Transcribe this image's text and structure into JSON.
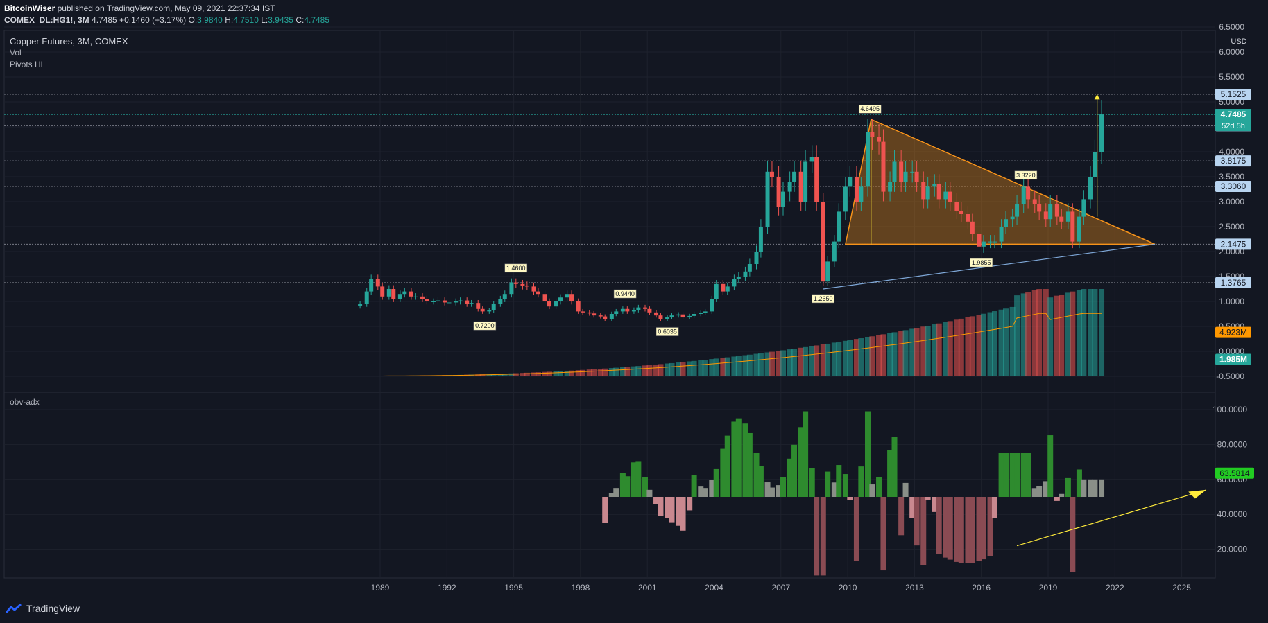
{
  "header": {
    "publisher": "BitcoinWiser",
    "published_text": "published on TradingView.com, May 09, 2021 22:37:34 IST",
    "symbol": "COMEX_DL:HG1!, 3M",
    "change": "4.7485 +0.1460 (+3.17%)",
    "o_label": "O:",
    "o": "3.9840",
    "h_label": "H:",
    "h": "4.7510",
    "l_label": "L:",
    "l": "3.9435",
    "c_label": "C:",
    "c": "4.7485"
  },
  "legend": {
    "title": "Copper Futures, 3M, COMEX",
    "vol": "Vol",
    "pivots": "Pivots HL",
    "osc": "obv-adx"
  },
  "price_axis": {
    "unit": "USD",
    "ticks": [
      "6.5000",
      "6.0000",
      "5.5000",
      "5.0000",
      "4.5000",
      "4.0000",
      "3.5000",
      "3.0000",
      "2.5000",
      "2.0000",
      "1.5000",
      "1.0000",
      "0.5000",
      "0.0000",
      "-0.5000"
    ],
    "levels": [
      "5.1525",
      "4.5225",
      "3.8175",
      "3.3060",
      "2.1475",
      "1.3765"
    ],
    "last_price": "4.7485",
    "countdown": "52d 5h",
    "vol_ma_label": "4.923M",
    "vol_label": "1.985M"
  },
  "osc_axis": {
    "ticks": [
      "100.0000",
      "80.0000",
      "60.0000",
      "40.0000",
      "20.0000"
    ],
    "last": "63.5814"
  },
  "time_axis": [
    "1989",
    "1992",
    "1995",
    "1998",
    "2001",
    "2004",
    "2007",
    "2010",
    "2013",
    "2016",
    "2019",
    "2022",
    "2025"
  ],
  "pivot_labels": [
    "1.4600",
    "0.7200",
    "0.9440",
    "0.6035",
    "1.2650",
    "4.6495",
    "1.9855",
    "3.3220"
  ],
  "colors": {
    "bg": "#131722",
    "up": "#26a69a",
    "down": "#ef5350",
    "triangle": "#f7931a",
    "osc_green": "#2e8b2e",
    "osc_gray": "#8a8f88",
    "osc_red": "#8a4b53",
    "pink": "#c9888f",
    "yellow": "#ffeb3b",
    "level": "#9598a1"
  },
  "chart_data": {
    "type": "candlestick",
    "title": "Copper Futures, 3M, COMEX",
    "x_axis_years": [
      1989,
      2025
    ],
    "ylim": [
      -0.6,
      6.6
    ],
    "horizontal_levels": [
      5.1525,
      4.5225,
      3.8175,
      3.306,
      2.1475,
      1.3765
    ],
    "pivots": [
      {
        "year": 1995.1,
        "value": 1.46,
        "type": "high"
      },
      {
        "year": 1993.7,
        "value": 0.72,
        "type": "low"
      },
      {
        "year": 2000.0,
        "value": 0.944,
        "type": "high"
      },
      {
        "year": 2001.9,
        "value": 0.6035,
        "type": "low"
      },
      {
        "year": 2008.9,
        "value": 1.265,
        "type": "low"
      },
      {
        "year": 2011.0,
        "value": 4.6495,
        "type": "high"
      },
      {
        "year": 2016.0,
        "value": 1.9855,
        "type": "low"
      },
      {
        "year": 2018.0,
        "value": 3.322,
        "type": "high"
      }
    ],
    "closes": [
      [
        1988.1,
        0.95
      ],
      [
        1988.4,
        1.2
      ],
      [
        1988.6,
        1.45
      ],
      [
        1988.9,
        1.3
      ],
      [
        1989.1,
        1.1
      ],
      [
        1989.4,
        1.25
      ],
      [
        1989.6,
        1.05
      ],
      [
        1989.9,
        1.15
      ],
      [
        1990.1,
        1.2
      ],
      [
        1990.4,
        1.1
      ],
      [
        1990.6,
        1.1
      ],
      [
        1990.9,
        1.05
      ],
      [
        1991.1,
        1.0
      ],
      [
        1991.4,
        1.0
      ],
      [
        1991.6,
        1.02
      ],
      [
        1991.9,
        0.98
      ],
      [
        1992.1,
        0.98
      ],
      [
        1992.4,
        1.0
      ],
      [
        1992.6,
        1.02
      ],
      [
        1992.9,
        0.95
      ],
      [
        1993.1,
        0.97
      ],
      [
        1993.4,
        0.85
      ],
      [
        1993.6,
        0.8
      ],
      [
        1993.9,
        0.82
      ],
      [
        1994.1,
        0.95
      ],
      [
        1994.4,
        1.05
      ],
      [
        1994.6,
        1.15
      ],
      [
        1994.9,
        1.38
      ],
      [
        1995.1,
        1.35
      ],
      [
        1995.4,
        1.32
      ],
      [
        1995.6,
        1.3
      ],
      [
        1995.9,
        1.2
      ],
      [
        1996.1,
        1.15
      ],
      [
        1996.4,
        1.0
      ],
      [
        1996.6,
        0.9
      ],
      [
        1996.9,
        1.0
      ],
      [
        1997.1,
        1.08
      ],
      [
        1997.4,
        1.15
      ],
      [
        1997.6,
        1.0
      ],
      [
        1997.9,
        0.8
      ],
      [
        1998.1,
        0.78
      ],
      [
        1998.4,
        0.76
      ],
      [
        1998.6,
        0.72
      ],
      [
        1998.9,
        0.7
      ],
      [
        1999.1,
        0.65
      ],
      [
        1999.4,
        0.75
      ],
      [
        1999.6,
        0.8
      ],
      [
        1999.9,
        0.85
      ],
      [
        2000.1,
        0.8
      ],
      [
        2000.4,
        0.83
      ],
      [
        2000.6,
        0.88
      ],
      [
        2000.9,
        0.85
      ],
      [
        2001.1,
        0.78
      ],
      [
        2001.4,
        0.72
      ],
      [
        2001.6,
        0.65
      ],
      [
        2001.9,
        0.68
      ],
      [
        2002.1,
        0.72
      ],
      [
        2002.4,
        0.74
      ],
      [
        2002.6,
        0.68
      ],
      [
        2002.9,
        0.71
      ],
      [
        2003.1,
        0.75
      ],
      [
        2003.4,
        0.77
      ],
      [
        2003.6,
        0.8
      ],
      [
        2003.9,
        1.05
      ],
      [
        2004.1,
        1.35
      ],
      [
        2004.4,
        1.2
      ],
      [
        2004.6,
        1.3
      ],
      [
        2004.9,
        1.45
      ],
      [
        2005.1,
        1.5
      ],
      [
        2005.4,
        1.6
      ],
      [
        2005.6,
        1.75
      ],
      [
        2005.9,
        2.0
      ],
      [
        2006.1,
        2.5
      ],
      [
        2006.4,
        3.6
      ],
      [
        2006.6,
        3.5
      ],
      [
        2006.9,
        2.9
      ],
      [
        2007.1,
        3.2
      ],
      [
        2007.4,
        3.4
      ],
      [
        2007.6,
        3.6
      ],
      [
        2007.9,
        3.0
      ],
      [
        2008.1,
        3.8
      ],
      [
        2008.4,
        3.9
      ],
      [
        2008.6,
        3.0
      ],
      [
        2008.9,
        1.4
      ],
      [
        2009.1,
        1.8
      ],
      [
        2009.4,
        2.2
      ],
      [
        2009.6,
        2.8
      ],
      [
        2009.9,
        3.3
      ],
      [
        2010.1,
        3.5
      ],
      [
        2010.4,
        3.0
      ],
      [
        2010.6,
        3.3
      ],
      [
        2010.9,
        4.4
      ],
      [
        2011.1,
        4.3
      ],
      [
        2011.4,
        4.2
      ],
      [
        2011.6,
        3.2
      ],
      [
        2011.9,
        3.4
      ],
      [
        2012.1,
        3.8
      ],
      [
        2012.4,
        3.4
      ],
      [
        2012.6,
        3.6
      ],
      [
        2012.9,
        3.6
      ],
      [
        2013.1,
        3.4
      ],
      [
        2013.4,
        3.05
      ],
      [
        2013.6,
        3.3
      ],
      [
        2013.9,
        3.35
      ],
      [
        2014.1,
        3.05
      ],
      [
        2014.4,
        3.2
      ],
      [
        2014.6,
        3.0
      ],
      [
        2014.9,
        2.82
      ],
      [
        2015.1,
        2.75
      ],
      [
        2015.4,
        2.6
      ],
      [
        2015.6,
        2.35
      ],
      [
        2015.9,
        2.1
      ],
      [
        2016.1,
        2.2
      ],
      [
        2016.4,
        2.2
      ],
      [
        2016.6,
        2.2
      ],
      [
        2016.9,
        2.5
      ],
      [
        2017.1,
        2.65
      ],
      [
        2017.4,
        2.7
      ],
      [
        2017.6,
        2.95
      ],
      [
        2017.9,
        3.3
      ],
      [
        2018.1,
        3.05
      ],
      [
        2018.4,
        2.95
      ],
      [
        2018.6,
        2.8
      ],
      [
        2018.9,
        2.65
      ],
      [
        2019.1,
        2.95
      ],
      [
        2019.4,
        2.7
      ],
      [
        2019.6,
        2.6
      ],
      [
        2019.9,
        2.8
      ],
      [
        2020.1,
        2.2
      ],
      [
        2020.4,
        2.7
      ],
      [
        2020.6,
        3.05
      ],
      [
        2020.9,
        3.5
      ],
      [
        2021.1,
        4.0
      ],
      [
        2021.4,
        4.7485
      ]
    ]
  }
}
